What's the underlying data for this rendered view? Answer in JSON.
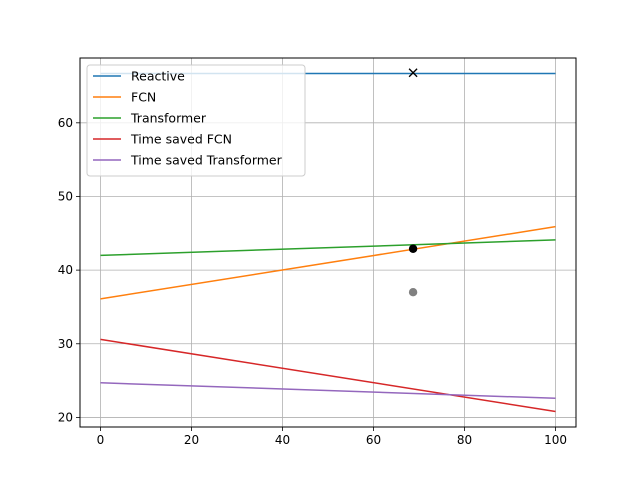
{
  "chart_data": {
    "type": "line",
    "title": "",
    "xlabel": "",
    "ylabel": "",
    "xlim": [
      -4.5,
      104.5
    ],
    "ylim": [
      18.7,
      68.8
    ],
    "x_ticks": [
      0,
      20,
      40,
      60,
      80,
      100
    ],
    "y_ticks": [
      20,
      30,
      40,
      50,
      60
    ],
    "grid": true,
    "legend_position": "top-left",
    "series": [
      {
        "name": "Reactive",
        "color": "#1f77b4",
        "x": [
          0,
          100
        ],
        "y": [
          66.7,
          66.7
        ]
      },
      {
        "name": "FCN",
        "color": "#ff7f0e",
        "x": [
          0,
          100
        ],
        "y": [
          36.1,
          45.9
        ]
      },
      {
        "name": "Transformer",
        "color": "#2ca02c",
        "x": [
          0,
          100
        ],
        "y": [
          42.0,
          44.1
        ]
      },
      {
        "name": "Time saved FCN",
        "color": "#d62728",
        "x": [
          0,
          100
        ],
        "y": [
          30.6,
          20.8
        ]
      },
      {
        "name": "Time saved Transformer",
        "color": "#9467bd",
        "x": [
          0,
          100
        ],
        "y": [
          24.7,
          22.6
        ]
      }
    ],
    "markers": [
      {
        "shape": "x",
        "color": "#000000",
        "x": 68.7,
        "y": 66.8
      },
      {
        "shape": "circle",
        "color": "#000000",
        "x": 68.7,
        "y": 42.9
      },
      {
        "shape": "circle",
        "color": "#808080",
        "x": 68.7,
        "y": 37.0
      }
    ]
  }
}
